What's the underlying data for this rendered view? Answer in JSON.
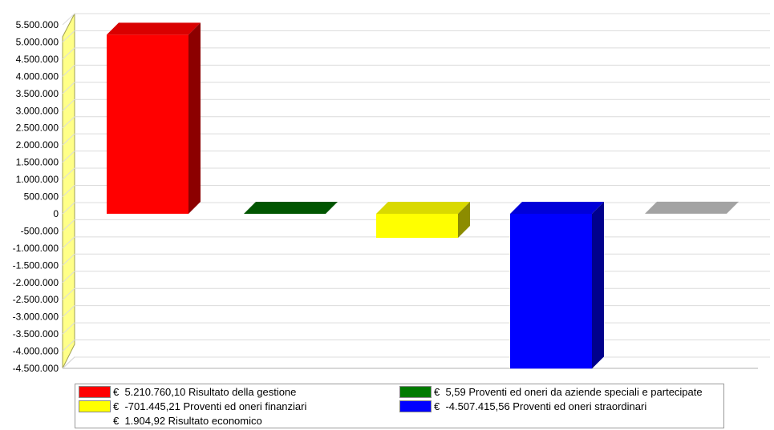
{
  "chart_data": {
    "type": "bar",
    "categories": [
      "Risultato della gestione",
      "Proventi ed oneri da aziende speciali e partecipate",
      "Proventi ed oneri finanziari",
      "Proventi ed oneri straordinari",
      "Risultato economico"
    ],
    "values": [
      5210760.1,
      5.59,
      -701445.21,
      -4507415.56,
      1904.92
    ],
    "colors": [
      "#ff0000",
      "#006400",
      "#ffff00",
      "#0000ff",
      "#c0c0c0"
    ],
    "ylim": [
      -4500000,
      5500000
    ],
    "yticks": [
      "5.500.000",
      "5.000.000",
      "4.500.000",
      "4.000.000",
      "3.500.000",
      "3.000.000",
      "2.500.000",
      "2.000.000",
      "1.500.000",
      "1.000.000",
      "500.000",
      "0",
      "-500.000",
      "-1.000.000",
      "-1.500.000",
      "-2.000.000",
      "-2.500.000",
      "-3.000.000",
      "-3.500.000",
      "-4.000.000",
      "-4.500.000"
    ],
    "ytick_values": [
      5500000,
      5000000,
      4500000,
      4000000,
      3500000,
      3000000,
      2500000,
      2000000,
      1500000,
      1000000,
      500000,
      0,
      -500000,
      -1000000,
      -1500000,
      -2000000,
      -2500000,
      -3000000,
      -3500000,
      -4000000,
      -4500000
    ],
    "grid": true,
    "style": "3d",
    "legend_position": "bottom"
  },
  "legend": [
    {
      "label": "€  5.210.760,10 Risultato della gestione",
      "color": "#ff0000"
    },
    {
      "label": "€  5,59 Proventi ed oneri da aziende speciali e partecipate",
      "color": "#007a00"
    },
    {
      "label": "€  -701.445,21 Proventi ed oneri finanziari",
      "color": "#ffff00"
    },
    {
      "label": "€  -4.507.415,56 Proventi ed oneri straordinari",
      "color": "#0000ff"
    },
    {
      "label": "€  1.904,92 Risultato economico",
      "color": "#ffffff"
    }
  ]
}
